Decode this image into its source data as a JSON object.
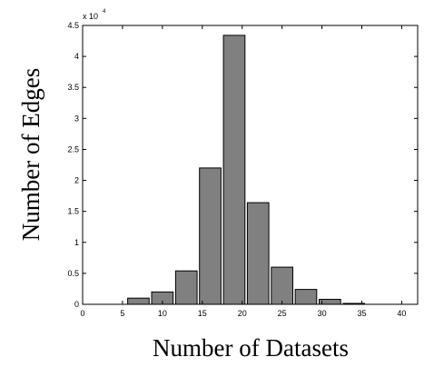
{
  "chart_data": {
    "type": "bar",
    "title": "",
    "xlabel": "Number of Datasets",
    "ylabel": "Number of Edges",
    "y_multiplier_text": "x 10",
    "y_multiplier_exponent": "4",
    "x": [
      7,
      10,
      13,
      16,
      19,
      22,
      25,
      28,
      31,
      34
    ],
    "values": [
      1000,
      2000,
      5400,
      22000,
      43400,
      16400,
      6000,
      2400,
      800,
      150
    ],
    "bar_width": 2.7,
    "xlim": [
      0,
      42
    ],
    "ylim": [
      0,
      45000
    ],
    "xticks": [
      0,
      5,
      10,
      15,
      20,
      25,
      30,
      35,
      40
    ],
    "xtick_labels": [
      "0",
      "5",
      "10",
      "15",
      "20",
      "25",
      "30",
      "35",
      "40"
    ],
    "yticks": [
      0,
      5000,
      10000,
      15000,
      20000,
      25000,
      30000,
      35000,
      40000,
      45000
    ],
    "ytick_labels": [
      "0",
      "0.5",
      "1",
      "1.5",
      "2",
      "2.5",
      "3",
      "3.5",
      "4",
      "4.5"
    ],
    "bar_color": "#808080",
    "grid": false
  }
}
